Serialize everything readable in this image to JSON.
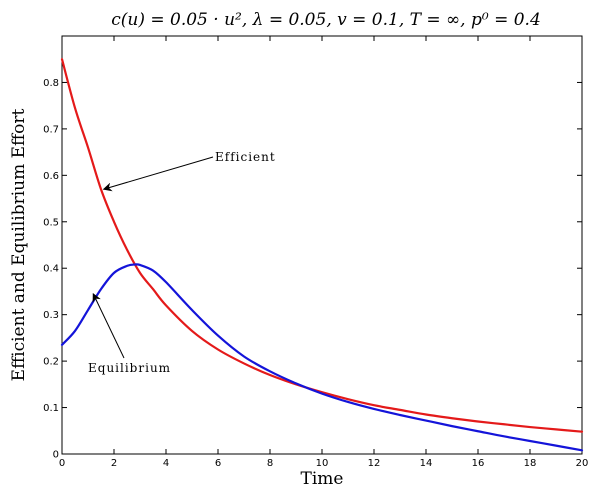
{
  "chart_data": {
    "type": "line",
    "title": "c(u) = 0.05 · u², λ = 0.05, v = 0.1, T = ∞, p⁰ = 0.4",
    "xlabel": "Time",
    "ylabel": "Efficient and Equilibrium Effort",
    "xlim": [
      0,
      20
    ],
    "ylim": [
      0,
      0.9
    ],
    "xticks": [
      0,
      2,
      4,
      6,
      8,
      10,
      12,
      14,
      16,
      18,
      20
    ],
    "yticks": [
      0,
      0.1,
      0.2,
      0.3,
      0.4,
      0.5,
      0.6,
      0.7,
      0.8
    ],
    "grid": false,
    "series": [
      {
        "name": "Efficient",
        "color": "#e41a1a",
        "x": [
          0,
          0.5,
          1,
          1.5,
          2,
          2.5,
          3,
          3.5,
          4,
          5,
          6,
          7,
          8,
          9,
          10,
          11,
          12,
          13,
          14,
          15,
          16,
          17,
          18,
          19,
          20
        ],
        "y": [
          0.85,
          0.745,
          0.66,
          0.57,
          0.5,
          0.44,
          0.39,
          0.355,
          0.32,
          0.265,
          0.225,
          0.195,
          0.17,
          0.15,
          0.133,
          0.118,
          0.105,
          0.095,
          0.085,
          0.077,
          0.07,
          0.064,
          0.058,
          0.053,
          0.048
        ]
      },
      {
        "name": "Equilibrium",
        "color": "#1414d9",
        "x": [
          0,
          0.5,
          1,
          1.5,
          2,
          2.5,
          2.8,
          3,
          3.5,
          4,
          5,
          6,
          7,
          8,
          9,
          10,
          11,
          12,
          13,
          14,
          15,
          16,
          17,
          18,
          19,
          20
        ],
        "y": [
          0.235,
          0.265,
          0.31,
          0.355,
          0.39,
          0.405,
          0.408,
          0.407,
          0.395,
          0.37,
          0.31,
          0.255,
          0.21,
          0.178,
          0.152,
          0.13,
          0.112,
          0.097,
          0.084,
          0.072,
          0.06,
          0.049,
          0.038,
          0.028,
          0.018,
          0.008
        ]
      }
    ],
    "annotations": [
      {
        "text": "Efficient",
        "arrow_to": [
          1.6,
          0.57
        ]
      },
      {
        "text": "Equilibrium",
        "arrow_to": [
          1.2,
          0.345
        ]
      }
    ]
  }
}
